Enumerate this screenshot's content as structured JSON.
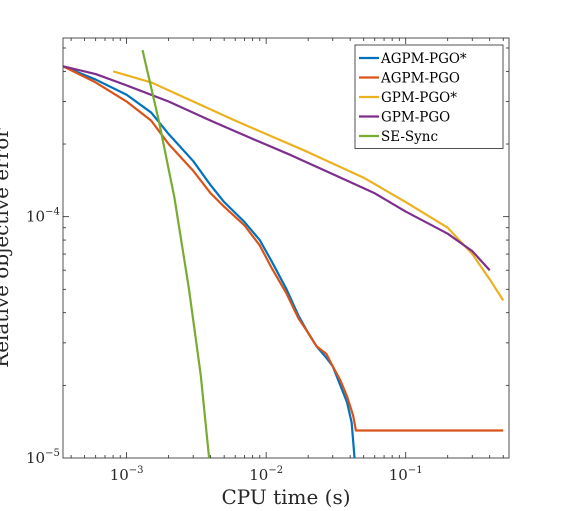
{
  "chart_data": {
    "type": "line",
    "xlabel": "CPU time (s)",
    "ylabel": "Relative objective error",
    "xscale": "log",
    "yscale": "log",
    "xlim": [
      0.00035,
      0.55
    ],
    "ylim": [
      1e-05,
      0.00055
    ],
    "grid": false,
    "legend_position": "top-right",
    "xticks": [
      {
        "value": 0.001,
        "base": "10",
        "exp": "−3"
      },
      {
        "value": 0.01,
        "base": "10",
        "exp": "−2"
      },
      {
        "value": 0.1,
        "base": "10",
        "exp": "−1"
      }
    ],
    "yticks": [
      {
        "value": 1e-05,
        "base": "10",
        "exp": "−5"
      },
      {
        "value": 0.0001,
        "base": "10",
        "exp": "−4"
      }
    ],
    "series": [
      {
        "name": "AGPM-PGO*",
        "color": "#0072BD",
        "step": false,
        "points": [
          [
            0.00035,
            0.00042
          ],
          [
            0.0006,
            0.00037
          ],
          [
            0.001,
            0.00032
          ],
          [
            0.0015,
            0.00027
          ],
          [
            0.002,
            0.00022
          ],
          [
            0.003,
            0.00017
          ],
          [
            0.004,
            0.000135
          ],
          [
            0.005,
            0.000115
          ],
          [
            0.007,
            9.5e-05
          ],
          [
            0.009,
            8e-05
          ],
          [
            0.011,
            6.5e-05
          ],
          [
            0.014,
            5e-05
          ],
          [
            0.017,
            3.9e-05
          ],
          [
            0.02,
            3.3e-05
          ],
          [
            0.023,
            2.9e-05
          ],
          [
            0.027,
            2.6e-05
          ],
          [
            0.03,
            2.4e-05
          ],
          [
            0.034,
            2e-05
          ],
          [
            0.038,
            1.7e-05
          ],
          [
            0.041,
            1.4e-05
          ],
          [
            0.043,
            1e-05
          ]
        ]
      },
      {
        "name": "AGPM-PGO",
        "color": "#D95319",
        "step": false,
        "points": [
          [
            0.00035,
            0.00042
          ],
          [
            0.0006,
            0.00036
          ],
          [
            0.001,
            0.0003
          ],
          [
            0.0015,
            0.00025
          ],
          [
            0.002,
            0.0002
          ],
          [
            0.003,
            0.000155
          ],
          [
            0.004,
            0.000125
          ],
          [
            0.005,
            0.00011
          ],
          [
            0.007,
            9.2e-05
          ],
          [
            0.009,
            7.6e-05
          ],
          [
            0.011,
            6.1e-05
          ],
          [
            0.014,
            4.8e-05
          ],
          [
            0.017,
            3.8e-05
          ],
          [
            0.02,
            3.3e-05
          ],
          [
            0.023,
            2.9e-05
          ],
          [
            0.027,
            2.7e-05
          ],
          [
            0.03,
            2.4e-05
          ],
          [
            0.034,
            2.1e-05
          ],
          [
            0.038,
            1.8e-05
          ],
          [
            0.042,
            1.5e-05
          ],
          [
            0.044,
            1.3e-05
          ],
          [
            0.5,
            1.3e-05
          ]
        ]
      },
      {
        "name": "GPM-PGO*",
        "color": "#EDB120",
        "step": false,
        "points": [
          [
            0.0008,
            0.0004
          ],
          [
            0.0015,
            0.00036
          ],
          [
            0.003,
            0.0003
          ],
          [
            0.006,
            0.00025
          ],
          [
            0.01,
            0.00022
          ],
          [
            0.02,
            0.000185
          ],
          [
            0.05,
            0.000145
          ],
          [
            0.1,
            0.000115
          ],
          [
            0.2,
            9e-05
          ],
          [
            0.3,
            7e-05
          ],
          [
            0.4,
            5.5e-05
          ],
          [
            0.5,
            4.5e-05
          ]
        ]
      },
      {
        "name": "GPM-PGO",
        "color": "#7E2F8E",
        "step": false,
        "points": [
          [
            0.00035,
            0.00042
          ],
          [
            0.0006,
            0.00039
          ],
          [
            0.001,
            0.00035
          ],
          [
            0.002,
            0.0003
          ],
          [
            0.004,
            0.00025
          ],
          [
            0.008,
            0.00021
          ],
          [
            0.015,
            0.00018
          ],
          [
            0.03,
            0.00015
          ],
          [
            0.06,
            0.000125
          ],
          [
            0.1,
            0.000105
          ],
          [
            0.2,
            8.5e-05
          ],
          [
            0.3,
            7.2e-05
          ],
          [
            0.4,
            6e-05
          ]
        ]
      },
      {
        "name": "SE-Sync",
        "color": "#77AC30",
        "step": false,
        "points": [
          [
            0.0013,
            0.00049
          ],
          [
            0.0017,
            0.00025
          ],
          [
            0.0022,
            0.00012
          ],
          [
            0.0028,
            5e-05
          ],
          [
            0.0034,
            2.2e-05
          ],
          [
            0.0039,
            1e-05
          ]
        ]
      }
    ]
  }
}
